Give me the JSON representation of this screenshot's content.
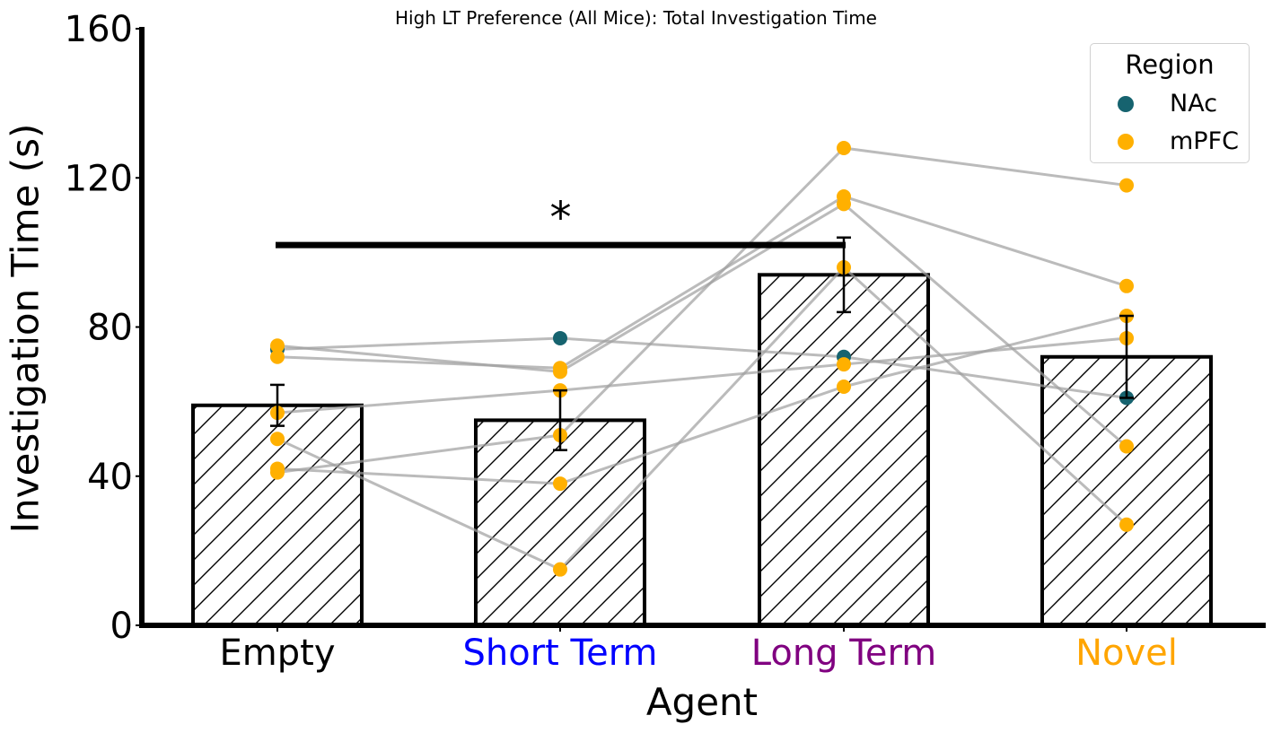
{
  "chart_data": {
    "type": "bar",
    "title": "High LT Preference (All Mice): Total Investigation Time",
    "xlabel": "Agent",
    "ylabel": "Investigation Time (s)",
    "ylim": [
      0,
      160
    ],
    "yticks": [
      0,
      40,
      80,
      120,
      160
    ],
    "categories": [
      "Empty",
      "Short Term",
      "Long Term",
      "Novel"
    ],
    "category_colors": [
      "#000000",
      "#0000ff",
      "#800080",
      "#ffa500"
    ],
    "bar_values": [
      59,
      55,
      94,
      72
    ],
    "error_bars": [
      5.5,
      8,
      10,
      11
    ],
    "bar_style": "white fill, black edge, diagonal hatch",
    "legend": {
      "title": "Region",
      "placement": "top-right",
      "entries": [
        {
          "label": "NAc",
          "color": "#16636f"
        },
        {
          "label": "mPFC",
          "color": "#ffb000"
        }
      ]
    },
    "mice": [
      {
        "region": "NAc",
        "values": [
          74,
          77,
          72,
          61
        ]
      },
      {
        "region": "mPFC",
        "values": [
          75,
          68,
          113,
          48
        ]
      },
      {
        "region": "mPFC",
        "values": [
          72,
          69,
          115,
          91
        ]
      },
      {
        "region": "mPFC",
        "values": [
          57,
          63,
          70,
          77
        ]
      },
      {
        "region": "mPFC",
        "values": [
          50,
          15,
          96,
          27
        ]
      },
      {
        "region": "mPFC",
        "values": [
          42,
          38,
          64,
          83
        ]
      },
      {
        "region": "mPFC",
        "values": [
          41,
          51,
          128,
          118
        ]
      }
    ],
    "significance": {
      "from": "Empty",
      "to": "Long Term",
      "label": "*",
      "y": 102
    }
  }
}
